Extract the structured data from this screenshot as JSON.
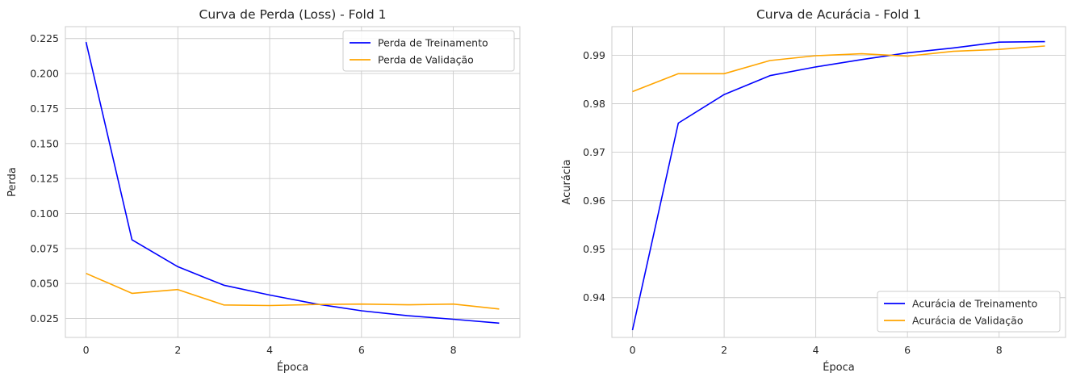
{
  "chart_data": [
    {
      "type": "line",
      "title": "Curva de Perda (Loss) - Fold 1",
      "xlabel": "Época",
      "ylabel": "Perda",
      "x": [
        0,
        1,
        2,
        3,
        4,
        5,
        6,
        7,
        8,
        9
      ],
      "xlim": [
        -0.45,
        9.45
      ],
      "ylim": [
        0.0115,
        0.2335
      ],
      "xticks": [
        0,
        2,
        4,
        6,
        8
      ],
      "yticks": [
        0.025,
        0.05,
        0.075,
        0.1,
        0.125,
        0.15,
        0.175,
        0.2,
        0.225
      ],
      "ytick_labels": [
        "0.025",
        "0.050",
        "0.075",
        "0.100",
        "0.125",
        "0.150",
        "0.175",
        "0.200",
        "0.225"
      ],
      "grid": true,
      "legend_position": "upper right",
      "series": [
        {
          "name": "Perda de Treinamento",
          "color": "#0000ff",
          "values": [
            0.2225,
            0.0812,
            0.062,
            0.0488,
            0.0418,
            0.0355,
            0.0305,
            0.027,
            0.0245,
            0.0217
          ]
        },
        {
          "name": "Perda de Validação",
          "color": "#ffa500",
          "values": [
            0.0572,
            0.043,
            0.0457,
            0.0347,
            0.0343,
            0.035,
            0.0353,
            0.0348,
            0.0353,
            0.0318
          ]
        }
      ]
    },
    {
      "type": "line",
      "title": "Curva de Acurácia - Fold 1",
      "xlabel": "Época",
      "ylabel": "Acurácia",
      "x": [
        0,
        1,
        2,
        3,
        4,
        5,
        6,
        7,
        8,
        9
      ],
      "xlim": [
        -0.45,
        9.45
      ],
      "ylim": [
        0.9318,
        0.9959
      ],
      "xticks": [
        0,
        2,
        4,
        6,
        8
      ],
      "yticks": [
        0.94,
        0.95,
        0.96,
        0.97,
        0.98,
        0.99
      ],
      "ytick_labels": [
        "0.94",
        "0.95",
        "0.96",
        "0.97",
        "0.98",
        "0.99"
      ],
      "grid": true,
      "legend_position": "lower right",
      "series": [
        {
          "name": "Acurácia de Treinamento",
          "color": "#0000ff",
          "values": [
            0.9333,
            0.976,
            0.9819,
            0.9858,
            0.9876,
            0.9891,
            0.9905,
            0.9915,
            0.9927,
            0.9928
          ]
        },
        {
          "name": "Acurácia de Validação",
          "color": "#ffa500",
          "values": [
            0.9825,
            0.9862,
            0.9862,
            0.9889,
            0.9899,
            0.9903,
            0.9898,
            0.9908,
            0.9912,
            0.9919
          ]
        }
      ]
    }
  ]
}
